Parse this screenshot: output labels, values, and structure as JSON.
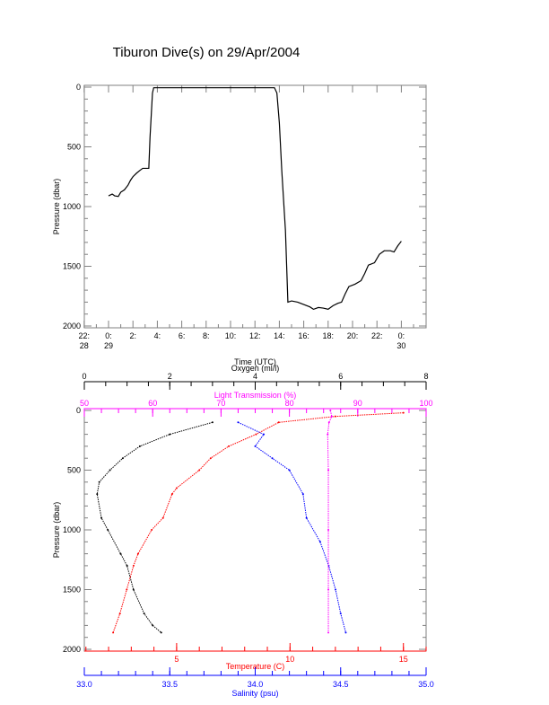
{
  "title": "Tiburon Dive(s) on 29/Apr/2004",
  "colors": {
    "oxygen": "#000000",
    "temperature": "#ff0000",
    "salinity": "#0000ff",
    "light": "#ff00ff",
    "axis": "#808080"
  },
  "chart_data": [
    {
      "type": "line",
      "xlabel": "Time (UTC)",
      "ylabel": "Pressure (dbar)",
      "xlim": [
        -2,
        26
      ],
      "ylim": [
        2000,
        0
      ],
      "x_ticks": [
        {
          "v": -2,
          "l1": "22:",
          "l2": "28"
        },
        {
          "v": 0,
          "l1": "0:",
          "l2": "29"
        },
        {
          "v": 2,
          "l1": "2:",
          "l2": ""
        },
        {
          "v": 4,
          "l1": "4:",
          "l2": ""
        },
        {
          "v": 6,
          "l1": "6:",
          "l2": ""
        },
        {
          "v": 8,
          "l1": "8:",
          "l2": ""
        },
        {
          "v": 10,
          "l1": "10:",
          "l2": ""
        },
        {
          "v": 12,
          "l1": "12:",
          "l2": ""
        },
        {
          "v": 14,
          "l1": "14:",
          "l2": ""
        },
        {
          "v": 16,
          "l1": "16:",
          "l2": ""
        },
        {
          "v": 18,
          "l1": "18:",
          "l2": ""
        },
        {
          "v": 20,
          "l1": "20:",
          "l2": ""
        },
        {
          "v": 22,
          "l1": "22:",
          "l2": ""
        },
        {
          "v": 24,
          "l1": "0:",
          "l2": "30"
        }
      ],
      "y_ticks": [
        "0",
        "500",
        "1000",
        "1500",
        "2000"
      ],
      "series": [
        {
          "name": "Pressure",
          "x": [
            0,
            0.3,
            0.5,
            0.8,
            1.0,
            1.3,
            1.6,
            1.8,
            2.0,
            2.3,
            2.6,
            2.8,
            3.3,
            3.4,
            3.6,
            3.7,
            13.6,
            13.8,
            14.0,
            14.2,
            14.5,
            14.7,
            15.0,
            15.5,
            16.0,
            16.5,
            16.8,
            17.2,
            17.6,
            18.0,
            18.4,
            18.8,
            19.1,
            19.4,
            19.7,
            20.2,
            20.7,
            21.0,
            21.3,
            21.8,
            22.2,
            22.6,
            23.1,
            23.4,
            23.7,
            24.0
          ],
          "y": [
            910,
            895,
            910,
            915,
            880,
            860,
            820,
            780,
            750,
            720,
            695,
            680,
            680,
            420,
            50,
            5,
            5,
            50,
            300,
            700,
            1200,
            1800,
            1790,
            1800,
            1820,
            1840,
            1860,
            1845,
            1850,
            1860,
            1830,
            1810,
            1800,
            1730,
            1670,
            1650,
            1620,
            1560,
            1490,
            1470,
            1400,
            1370,
            1370,
            1380,
            1330,
            1290
          ]
        }
      ]
    },
    {
      "type": "line",
      "ylabel": "Pressure (dbar)",
      "ylim": [
        2000,
        0
      ],
      "y_ticks": [
        "0",
        "500",
        "1000",
        "1500",
        "2000"
      ],
      "axes": {
        "oxygen": {
          "label": "Oxygen (ml/l)",
          "range": [
            0,
            8
          ],
          "ticks": [
            "0",
            "2",
            "4",
            "6",
            "8"
          ]
        },
        "light": {
          "label": "Light Transmission (%)",
          "range": [
            50,
            100
          ],
          "ticks": [
            "50",
            "60",
            "70",
            "80",
            "90",
            "100"
          ]
        },
        "temperature": {
          "label": "Temperature (C)",
          "range": [
            0.93,
            16
          ],
          "ticks": [
            "5",
            "10",
            "15"
          ]
        },
        "salinity": {
          "label": "Salinity (psu)",
          "range": [
            33,
            35
          ],
          "ticks": [
            "33.0",
            "33.5",
            "34.0",
            "34.5",
            "35.0"
          ]
        }
      },
      "series": [
        {
          "name": "Oxygen",
          "axis": "oxygen",
          "p": [
            100,
            200,
            300,
            400,
            500,
            600,
            700,
            900,
            1000,
            1200,
            1300,
            1500,
            1700,
            1800,
            1860
          ],
          "v": [
            3.0,
            2.0,
            1.3,
            0.9,
            0.6,
            0.35,
            0.3,
            0.4,
            0.55,
            0.85,
            1.0,
            1.15,
            1.4,
            1.6,
            1.8
          ]
        },
        {
          "name": "Temperature",
          "axis": "temperature",
          "p": [
            20,
            50,
            100,
            200,
            300,
            400,
            500,
            650,
            700,
            900,
            1000,
            1200,
            1300,
            1500,
            1700,
            1860
          ],
          "v": [
            15,
            12,
            9.5,
            8.5,
            7.3,
            6.5,
            6.0,
            5.0,
            4.8,
            4.4,
            3.9,
            3.3,
            3.1,
            2.8,
            2.5,
            2.2
          ]
        },
        {
          "name": "Salinity",
          "axis": "salinity",
          "p": [
            100,
            200,
            300,
            400,
            500,
            700,
            900,
            1100,
            1300,
            1500,
            1700,
            1860
          ],
          "v": [
            33.9,
            34.05,
            34.0,
            34.1,
            34.2,
            34.28,
            34.3,
            34.38,
            34.43,
            34.47,
            34.5,
            34.53
          ]
        },
        {
          "name": "Light Transmission",
          "axis": "light",
          "p": [
            0,
            50,
            100,
            200,
            500,
            1000,
            1500,
            1860
          ],
          "v": [
            86,
            86.2,
            85.8,
            85.6,
            85.7,
            85.7,
            85.7,
            85.7
          ]
        }
      ]
    }
  ]
}
